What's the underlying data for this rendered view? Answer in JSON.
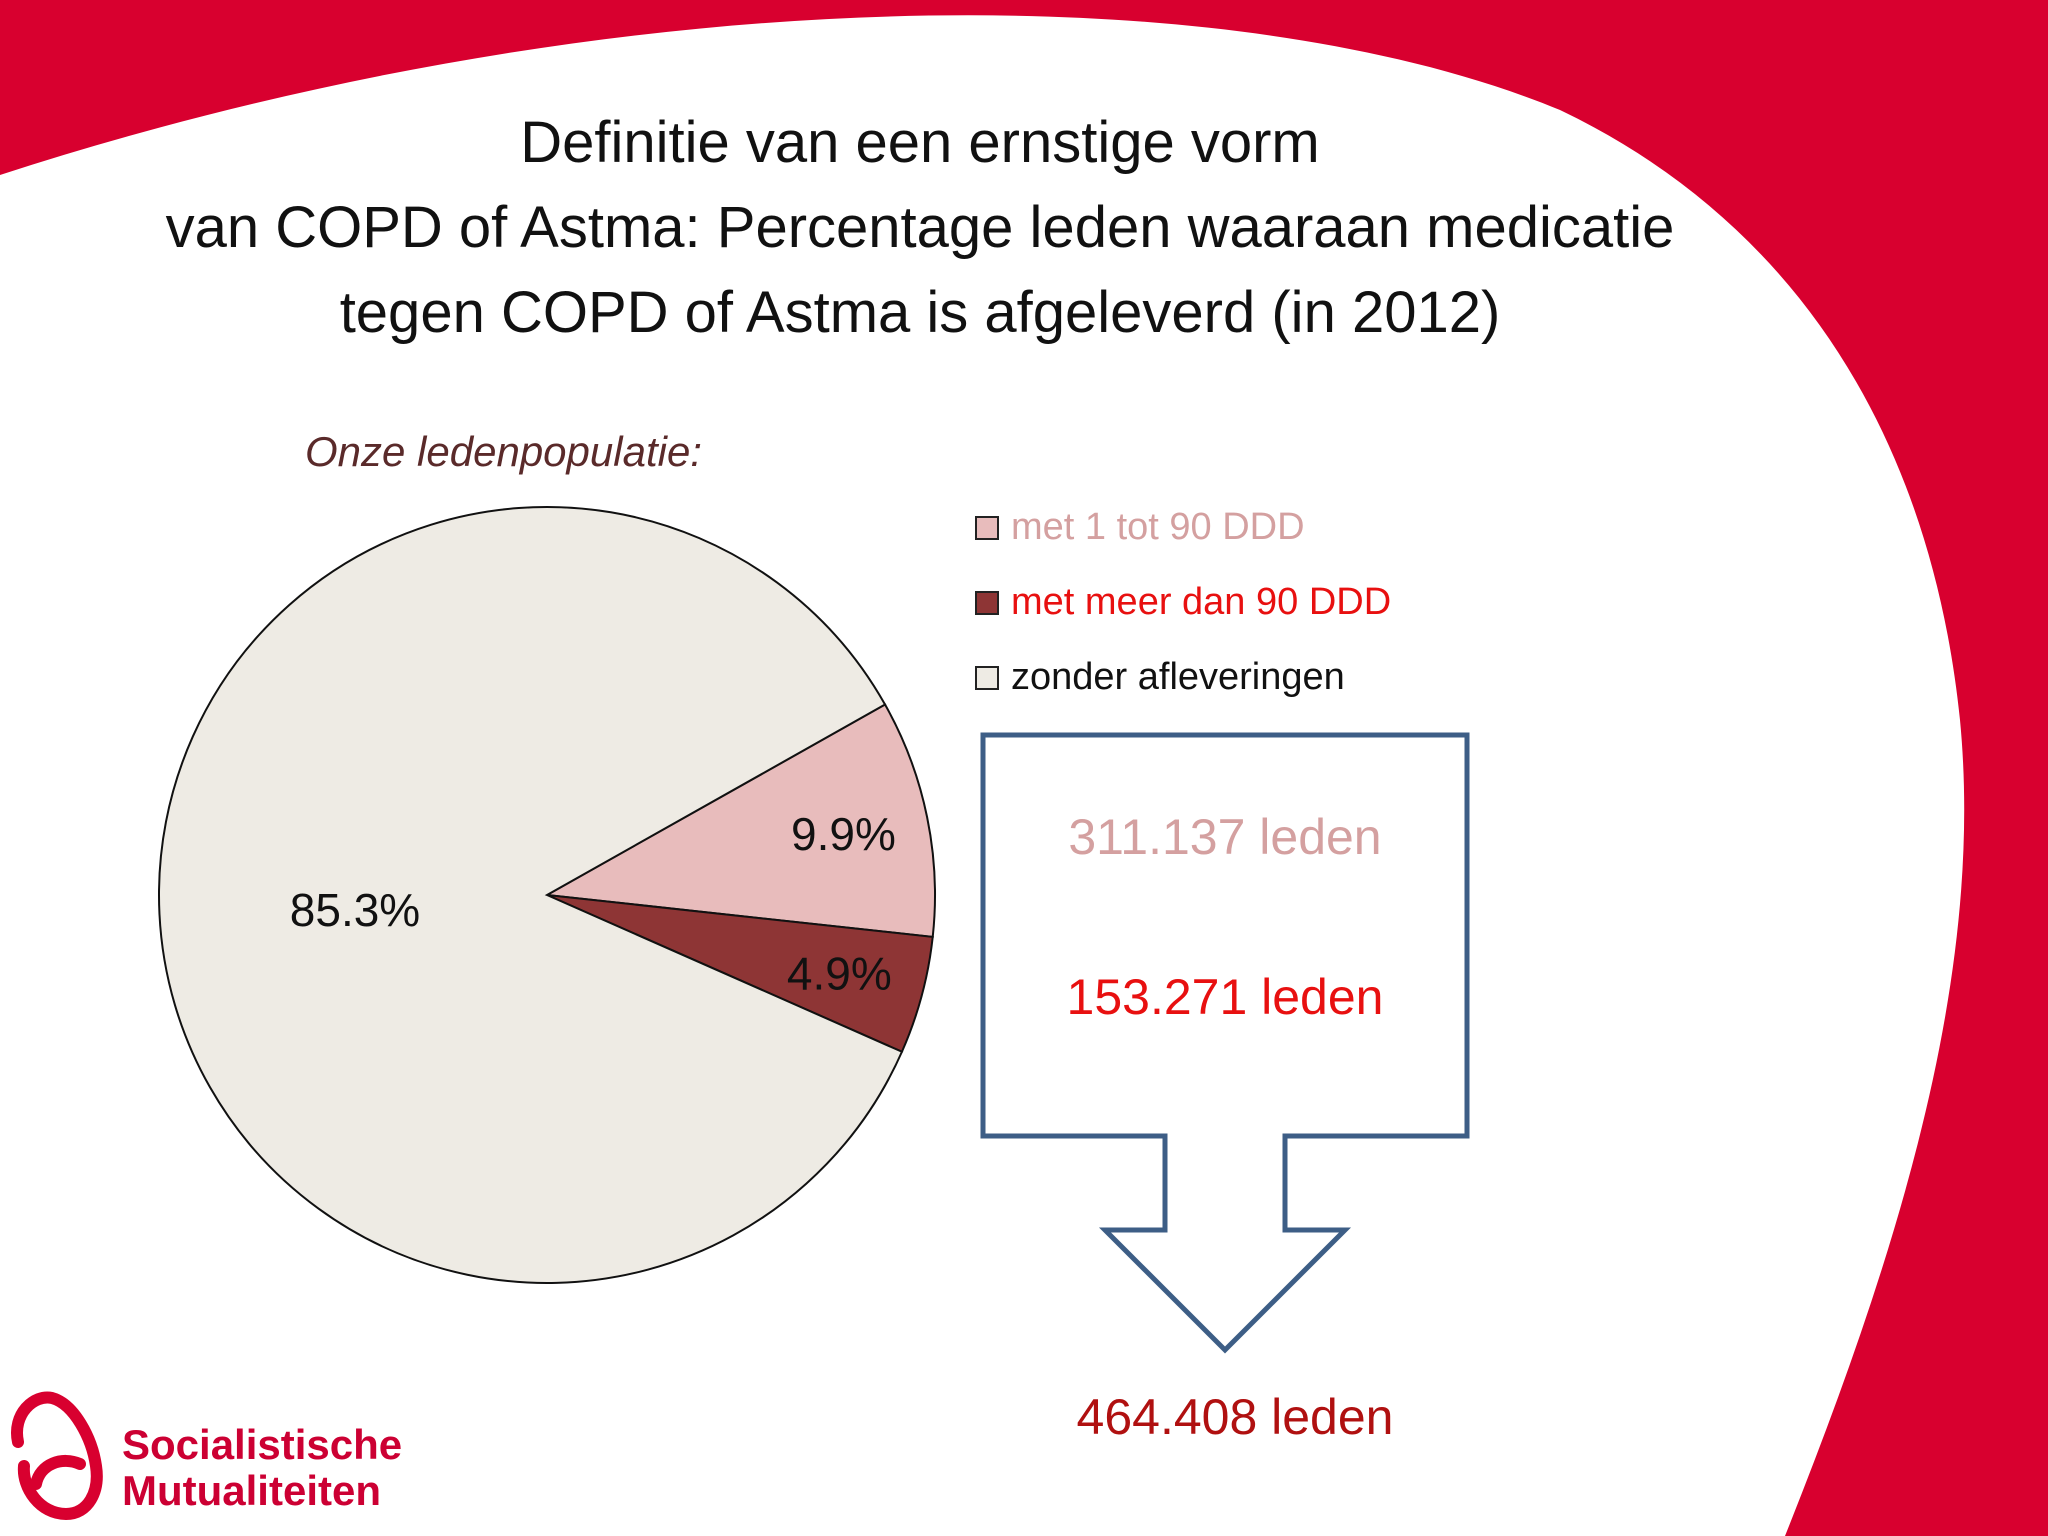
{
  "title_lines": [
    "Definitie van een ernstige vorm",
    "van COPD of Astma:  Percentage leden waaraan medicatie",
    "tegen COPD of Astma is afgeleverd  (in 2012)"
  ],
  "subtitle": "Onze ledenpopulatie:",
  "colors": {
    "brand_red": "#d8002f",
    "arrow_stroke": "#3d5e86"
  },
  "chart_data": {
    "type": "pie",
    "title": "Definitie van een ernstige vorm van COPD of Astma:  Percentage leden waaraan medicatie tegen COPD of Astma is afgeleverd  (in 2012)",
    "legend_position": "right",
    "slices": [
      {
        "name": "met 1 tot 90 DDD",
        "value": 9.9,
        "label": "9.9%",
        "color": "#e8bcbc",
        "legend_text_color": "#d4a0a0"
      },
      {
        "name": "met meer dan 90 DDD",
        "value": 4.9,
        "label": "4.9%",
        "color": "#8e3535",
        "legend_text_color": "#e81010"
      },
      {
        "name": "zonder afleveringen",
        "value": 85.3,
        "label": "85.3%",
        "color": "#eeebe4",
        "legend_text_color": "#111111"
      }
    ]
  },
  "counts": {
    "group1": {
      "text": "311.137 leden",
      "color": "#d4a0a0"
    },
    "group2": {
      "text": "153.271 leden",
      "color": "#e81010"
    },
    "total": {
      "text": "464.408 leden",
      "color": "#b01010"
    }
  },
  "logo": {
    "line1": "Socialistische",
    "line2": "Mutualiteiten"
  }
}
